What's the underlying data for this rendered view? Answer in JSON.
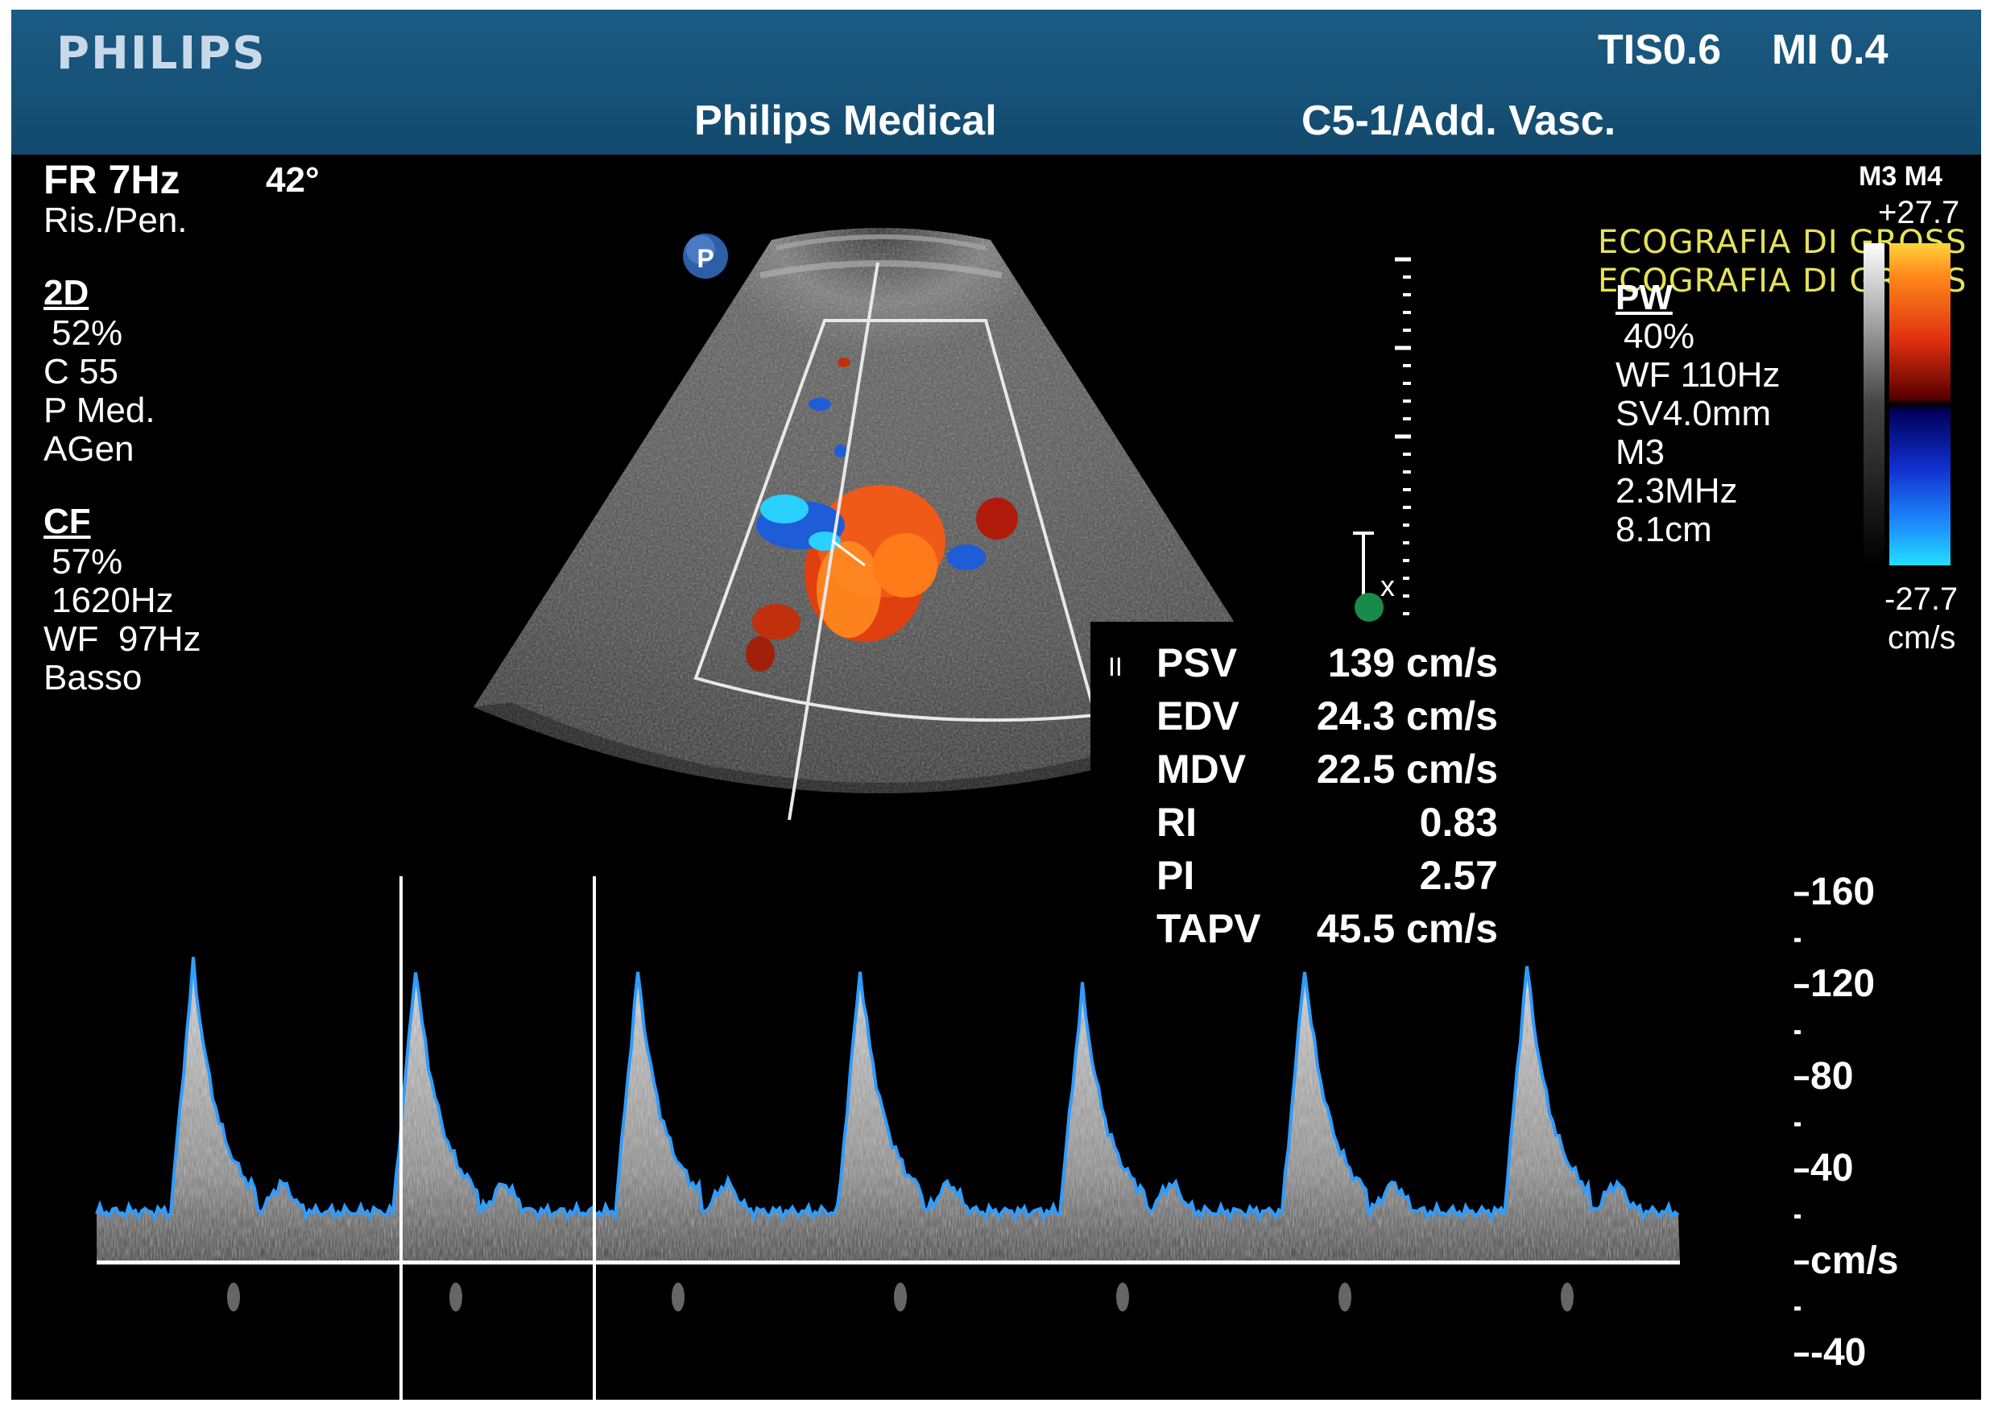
{
  "header": {
    "logo": "PHILIPS",
    "tis": "TIS0.6",
    "mi": "MI 0.4",
    "institution": "Philips Medical",
    "probe": "C5-1/Add. Vasc."
  },
  "left_panel": {
    "frame_rate": "FR 7Hz",
    "angle": "42°",
    "mode_preset": "Ris./Pen.",
    "section_2d": {
      "title": "2D",
      "gain": "52%",
      "compression": "C 55",
      "persistence": "P Med.",
      "agen": "AGen"
    },
    "section_cf": {
      "title": "CF",
      "gain": "57%",
      "prf": "1620Hz",
      "wall_filter": "WF  97Hz",
      "level": "Basso"
    }
  },
  "right_panel": {
    "title": "PW",
    "gain": "40%",
    "wall_filter": "WF 110Hz",
    "sample_volume": "SV4.0mm",
    "map": "M3",
    "frequency": "2.3MHz",
    "depth": "8.1cm"
  },
  "annotation": {
    "line1": "ECOGRAFIA DI GROSS",
    "line2": "ECOGRAFIA DI GROSS"
  },
  "color_bar": {
    "maps": "M3 M4",
    "top_value": "+27.7",
    "bottom_value": "-27.7",
    "unit": "cm/s"
  },
  "probe_marker": "P",
  "cursor_label": "x",
  "measurements": {
    "marker": "II",
    "rows": [
      {
        "label": "PSV",
        "value": "139 cm/s"
      },
      {
        "label": "EDV",
        "value": "24.3 cm/s"
      },
      {
        "label": "MDV",
        "value": "22.5 cm/s"
      },
      {
        "label": "RI",
        "value": "0.83"
      },
      {
        "label": "PI",
        "value": "2.57"
      },
      {
        "label": "TAPV",
        "value": "45.5 cm/s"
      }
    ]
  },
  "doppler_scale": {
    "labels": [
      "160",
      "120",
      "80",
      "40",
      "cm/s",
      "-40"
    ],
    "values": [
      160,
      120,
      80,
      40,
      0,
      -40
    ],
    "range": [
      -40,
      160
    ]
  },
  "spectrum": {
    "baseline_velocity": 22,
    "peak_velocities": [
      130,
      128,
      126,
      127,
      119,
      128,
      129
    ]
  }
}
